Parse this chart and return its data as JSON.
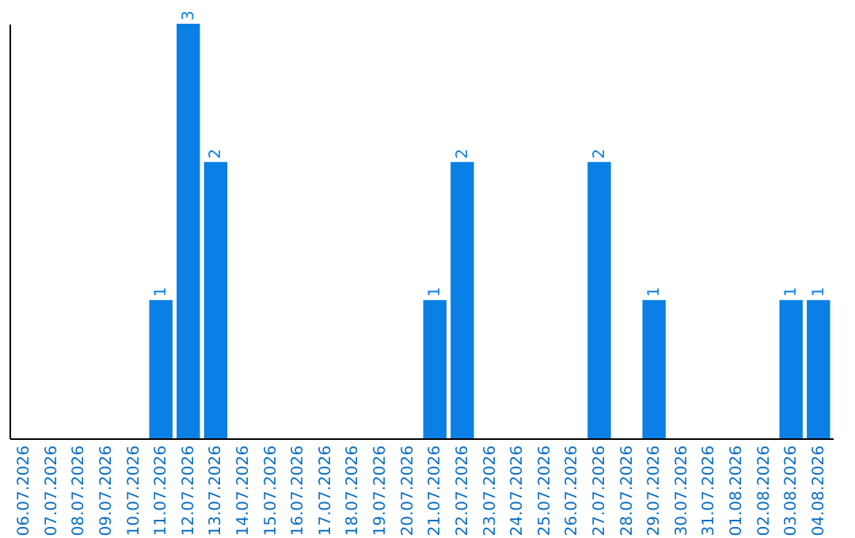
{
  "chart_data": {
    "type": "bar",
    "categories": [
      "06.07.2026",
      "07.07.2026",
      "08.07.2026",
      "09.07.2026",
      "10.07.2026",
      "11.07.2026",
      "12.07.2026",
      "13.07.2026",
      "14.07.2026",
      "15.07.2026",
      "16.07.2026",
      "17.07.2026",
      "18.07.2026",
      "19.07.2026",
      "20.07.2026",
      "21.07.2026",
      "22.07.2026",
      "23.07.2026",
      "24.07.2026",
      "25.07.2026",
      "26.07.2026",
      "27.07.2026",
      "28.07.2026",
      "29.07.2026",
      "30.07.2026",
      "31.07.2026",
      "01.08.2026",
      "02.08.2026",
      "03.08.2026",
      "04.08.2026"
    ],
    "values": [
      0,
      0,
      0,
      0,
      0,
      1,
      3,
      2,
      0,
      0,
      0,
      0,
      0,
      0,
      0,
      1,
      2,
      0,
      0,
      0,
      0,
      2,
      0,
      1,
      0,
      0,
      0,
      0,
      1,
      1
    ],
    "color": "#0a7fe6",
    "ylim": [
      0,
      3
    ],
    "value_labels": [
      null,
      null,
      null,
      null,
      null,
      "1",
      "3",
      "2",
      null,
      null,
      null,
      null,
      null,
      null,
      null,
      "1",
      "2",
      null,
      null,
      null,
      null,
      "2",
      null,
      "1",
      null,
      null,
      null,
      null,
      "1",
      "1"
    ],
    "tick_labels": "x"
  }
}
